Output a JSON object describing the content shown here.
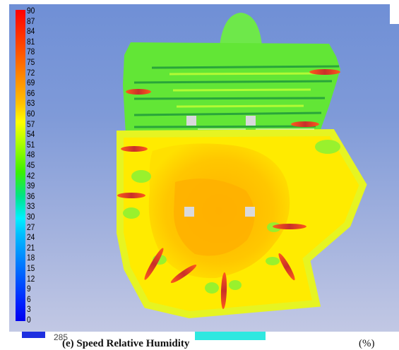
{
  "legend": {
    "ticks": [
      "90",
      "87",
      "84",
      "81",
      "78",
      "75",
      "72",
      "69",
      "66",
      "63",
      "60",
      "57",
      "54",
      "51",
      "48",
      "45",
      "42",
      "39",
      "36",
      "33",
      "30",
      "27",
      "24",
      "21",
      "18",
      "15",
      "12",
      "9",
      "6",
      "3",
      "0"
    ]
  },
  "footer": {
    "cut_number": "285",
    "cut_title": "(e) Speed Relative Humidity",
    "cut_right": "(%)"
  }
}
